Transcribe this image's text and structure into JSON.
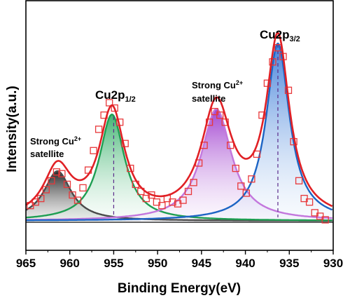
{
  "chart_data": {
    "type": "line",
    "xlabel": "Binding Energy(eV)",
    "ylabel": "Intensity(a.u.)",
    "xlim": [
      965,
      930
    ],
    "x_reversed": true,
    "x_ticks": [
      "965",
      "960",
      "955",
      "950",
      "945",
      "940",
      "935",
      "930"
    ],
    "y_ticks_shown": false,
    "series": [
      {
        "kind": "experimental-markers",
        "marker": "open-square",
        "color": "#e8383a",
        "x": [
          964.5,
          963.9,
          963.3,
          962.7,
          962.1,
          961.5,
          960.9,
          960.3,
          959.7,
          959.1,
          958.5,
          957.9,
          957.3,
          956.7,
          956.1,
          955.5,
          954.9,
          954.3,
          953.7,
          953.1,
          952.5,
          951.9,
          951.3,
          950.7,
          950.1,
          949.5,
          948.9,
          948.3,
          947.7,
          947.1,
          946.5,
          945.9,
          945.3,
          944.7,
          944.1,
          943.5,
          942.9,
          942.3,
          941.7,
          941.1,
          940.5,
          939.9,
          939.3,
          938.7,
          938.1,
          937.5,
          936.9,
          936.3,
          935.7,
          935.1,
          934.5,
          933.9,
          933.3,
          932.7,
          932.1,
          931.5,
          930.9
        ],
        "y": [
          0.09,
          0.11,
          0.13,
          0.18,
          0.23,
          0.28,
          0.27,
          0.21,
          0.15,
          0.12,
          0.19,
          0.29,
          0.4,
          0.52,
          0.6,
          0.67,
          0.64,
          0.56,
          0.44,
          0.3,
          0.21,
          0.17,
          0.13,
          0.15,
          0.11,
          0.09,
          0.13,
          0.11,
          0.1,
          0.12,
          0.17,
          0.22,
          0.33,
          0.43,
          0.56,
          0.62,
          0.6,
          0.56,
          0.43,
          0.3,
          0.2,
          0.16,
          0.24,
          0.38,
          0.6,
          0.78,
          0.9,
          0.98,
          0.93,
          0.74,
          0.45,
          0.23,
          0.13,
          0.11,
          0.05,
          0.03,
          0.01
        ]
      },
      {
        "kind": "envelope",
        "color": "#e02025"
      },
      {
        "kind": "peak-fit",
        "name": "Strong Cu2+ satellite (low)",
        "center": 961.4,
        "height": 0.28,
        "width": 1.9,
        "color": "#4a4a4a",
        "fill": "#2a2a2a"
      },
      {
        "kind": "peak-fit",
        "name": "Cu2p1/2",
        "center": 955.2,
        "height": 0.6,
        "width": 1.75,
        "color": "#1e9e52",
        "fill": "#2fb068"
      },
      {
        "kind": "peak-fit",
        "name": "Strong Cu2+ satellite (high)",
        "center": 943.3,
        "height": 0.63,
        "width": 2.1,
        "color": "#c377dd",
        "fill": "#a53ecf"
      },
      {
        "kind": "peak-fit",
        "name": "Cu2p3/2",
        "center": 936.3,
        "height": 1.0,
        "width": 1.6,
        "color": "#1c64c4",
        "fill": "#3f86e0"
      }
    ],
    "reference_lines": [
      955.0,
      936.3
    ]
  },
  "annotations": {
    "cu2p32": {
      "main": "Cu2p",
      "sub": "3/2"
    },
    "cu2p12": {
      "main": "Cu2p",
      "sub": "1/2"
    },
    "sat_high": {
      "line1_main": "Strong Cu",
      "line1_sup": "2+",
      "line2": "satellite"
    },
    "sat_low": {
      "line1_main": "Strong Cu",
      "line1_sup": "2+",
      "line2": "satellite"
    }
  }
}
